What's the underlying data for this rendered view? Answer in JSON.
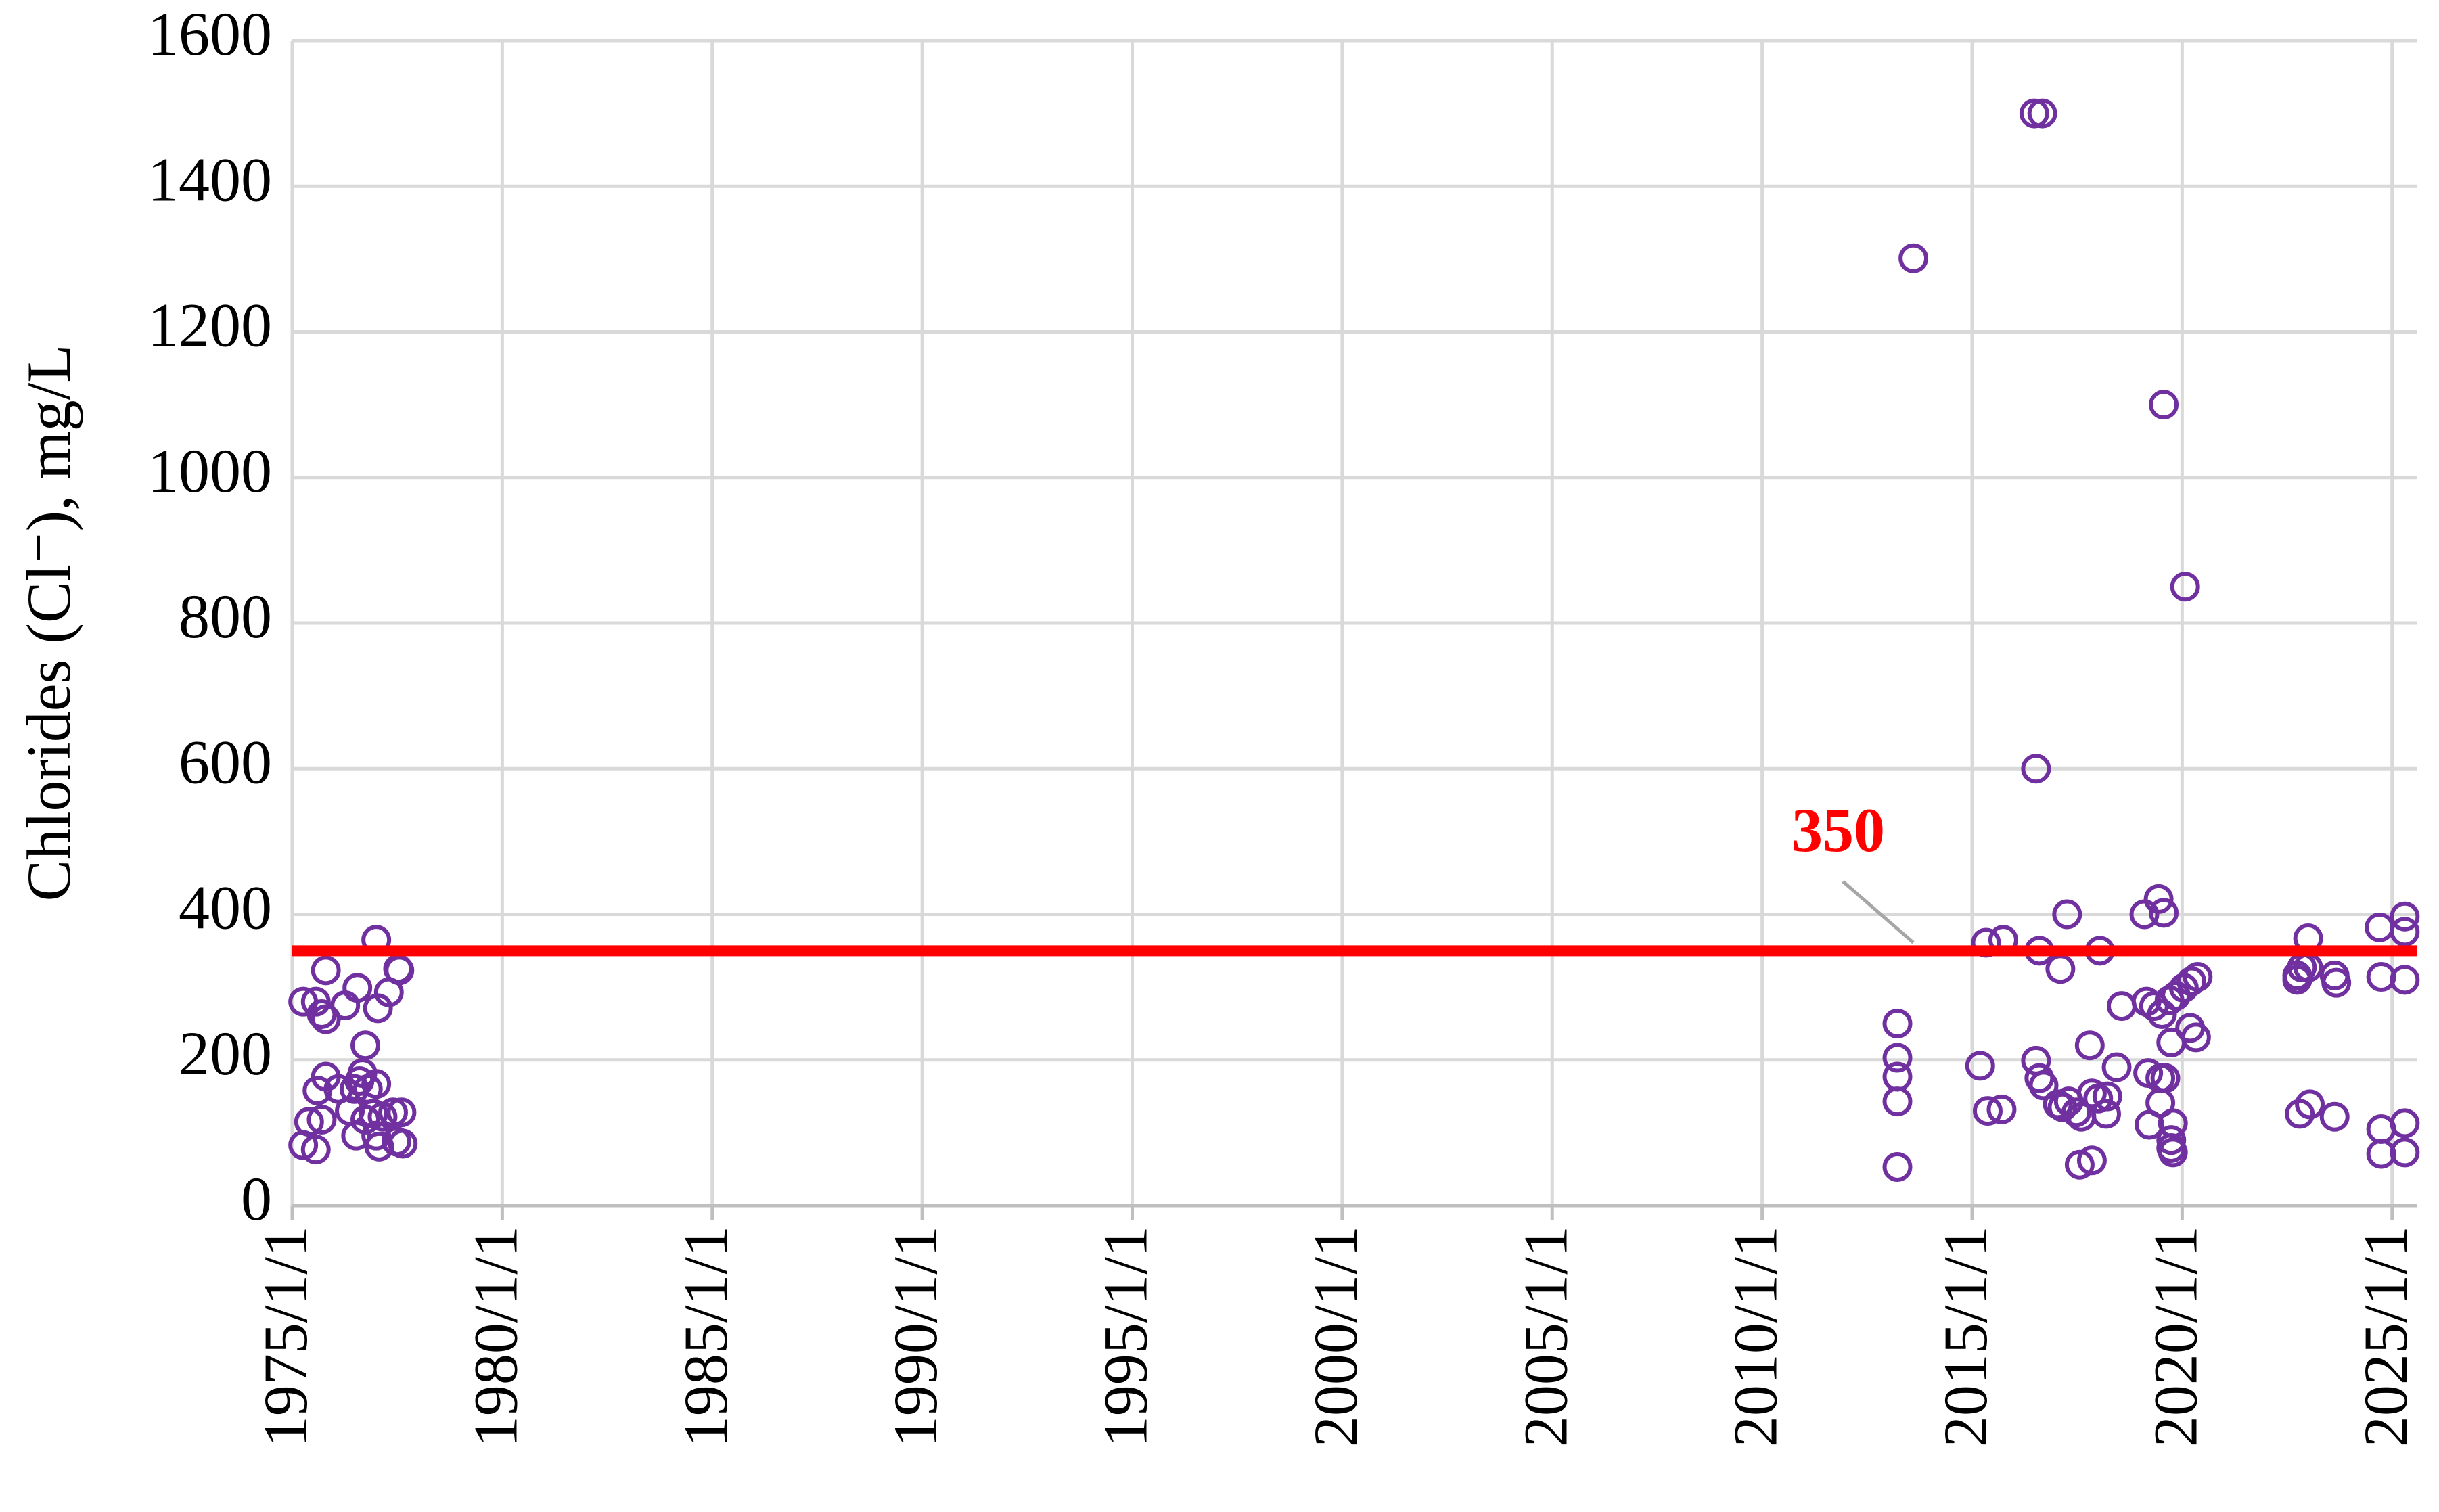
{
  "chart_data": {
    "type": "scatter",
    "y_label": "Chlorides (Cl⁻), mg/L",
    "color": "#7030a0",
    "marker": "open-circle",
    "grid": true,
    "xlim": [
      1975,
      2025.6
    ],
    "xticks": [
      {
        "value": 1975,
        "label": "1975/1/1"
      },
      {
        "value": 1980,
        "label": "1980/1/1"
      },
      {
        "value": 1985,
        "label": "1985/1/1"
      },
      {
        "value": 1990,
        "label": "1990/1/1"
      },
      {
        "value": 1995,
        "label": "1995/1/1"
      },
      {
        "value": 2000,
        "label": "2000/1/1"
      },
      {
        "value": 2005,
        "label": "2005/1/1"
      },
      {
        "value": 2010,
        "label": "2010/1/1"
      },
      {
        "value": 2015,
        "label": "2015/1/1"
      },
      {
        "value": 2020,
        "label": "2020/1/1"
      },
      {
        "value": 2025,
        "label": "2025/1/1"
      }
    ],
    "ylim": [
      0,
      1600
    ],
    "yticks": [
      0,
      200,
      400,
      600,
      800,
      1000,
      1200,
      1400,
      1600
    ],
    "threshold": {
      "value": 350,
      "color": "#ff0000"
    },
    "x": [
      1975.26,
      1975.56,
      1975.8,
      1975.7,
      1975.8,
      1976.26,
      1976.55,
      1977.0,
      1977.04,
      1977.3,
      1977.52,
      1977.55,
      1976.74,
      1975.26,
      1975.56,
      1975.6,
      1975.8,
      1975.7,
      1975.4,
      1976.1,
      1976.37,
      1976.48,
      1976.6,
      1976.67,
      1976.8,
      1977.0,
      1976.52,
      1976.74,
      1977.0,
      1977.07,
      1976.93,
      1977.15,
      1977.4,
      1977.6,
      1977.48,
      1977.63,
      2013.22,
      2013.22,
      2013.22,
      2013.22,
      2013.22,
      2013.6,
      2015.19,
      2015.33,
      2015.37,
      2015.74,
      2015.7,
      2016.48,
      2016.67,
      2016.52,
      2016.6,
      2016.52,
      2016.6,
      2016.7,
      2017.1,
      2017.26,
      2017.04,
      2017.15,
      2017.3,
      2017.48,
      2017.6,
      2017.56,
      2017.85,
      2017.8,
      2017.85,
      2018.04,
      2018.0,
      2018.19,
      2018.22,
      2018.44,
      2018.56,
      2019.1,
      2019.15,
      2019.19,
      2019.22,
      2019.44,
      2019.56,
      2019.33,
      2019.52,
      2019.7,
      2019.48,
      2019.6,
      2019.48,
      2019.56,
      2019.74,
      2019.78,
      2019.74,
      2019.74,
      2019.78,
      2019.85,
      2020.04,
      2020.22,
      2020.37,
      2020.07,
      2020.19,
      2020.33,
      2022.74,
      2022.74,
      2022.85,
      2023.0,
      2023.0,
      2022.8,
      2023.04,
      2023.63,
      2023.67,
      2023.63,
      2024.7,
      2024.74,
      2024.74,
      2024.74,
      2025.3,
      2025.3,
      2025.3,
      2025.3,
      2025.3
    ],
    "values": [
      280,
      280,
      323,
      263,
      256,
      275,
      299,
      365,
      271,
      293,
      325,
      323,
      220,
      83,
      77,
      158,
      177,
      118,
      115,
      160,
      130,
      160,
      171,
      182,
      160,
      167,
      96,
      118,
      96,
      81,
      126,
      122,
      128,
      128,
      88,
      85,
      53,
      250,
      203,
      177,
      143,
      1301,
      192,
      361,
      130,
      365,
      132,
      1500,
      1500,
      600,
      350,
      199,
      175,
      165,
      325,
      400,
      139,
      135,
      143,
      128,
      122,
      56,
      62,
      220,
      154,
      350,
      147,
      126,
      150,
      190,
      274,
      400,
      280,
      182,
      111,
      421,
      402,
      274,
      263,
      282,
      175,
      175,
      141,
      1100,
      224,
      113,
      90,
      79,
      73,
      288,
      299,
      308,
      314,
      850,
      244,
      231,
      316,
      310,
      327,
      367,
      327,
      126,
      139,
      316,
      306,
      122,
      382,
      314,
      105,
      71,
      397,
      376,
      310,
      113,
      73
    ]
  }
}
